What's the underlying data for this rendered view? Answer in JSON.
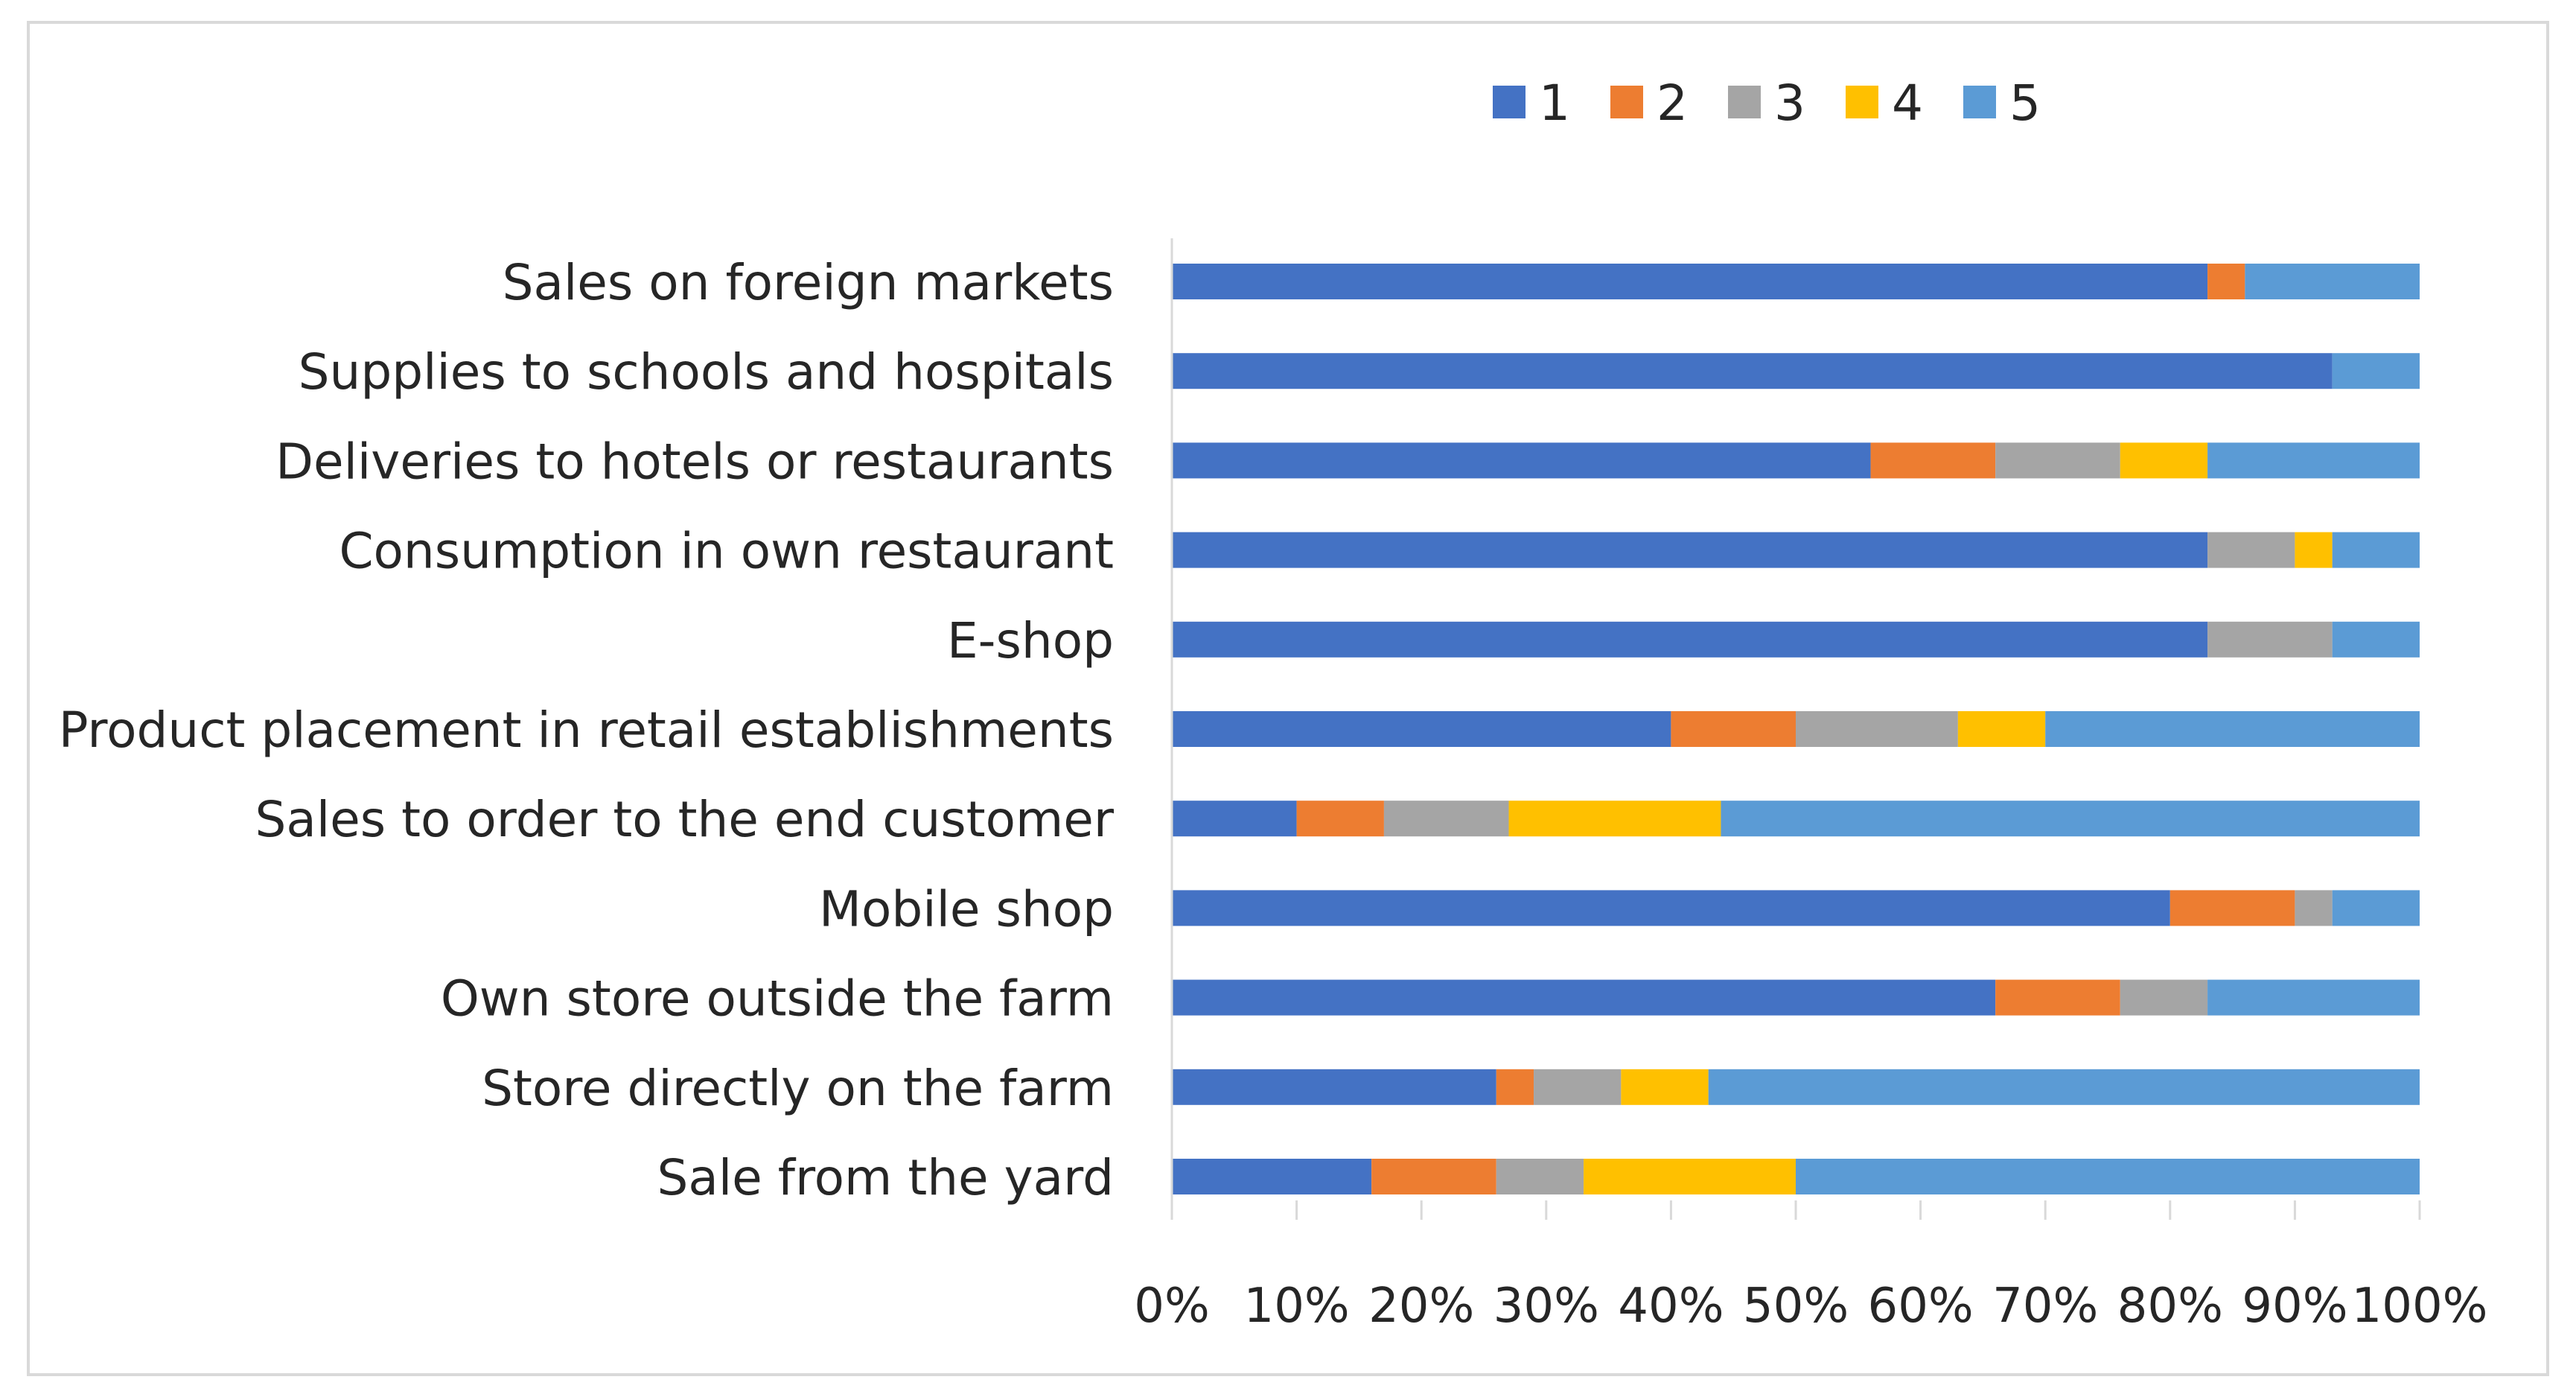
{
  "chart_data": {
    "type": "bar",
    "orientation": "horizontal",
    "stacked": "percent",
    "title": "",
    "xlabel": "",
    "ylabel": "",
    "xlim": [
      0,
      100
    ],
    "grid": false,
    "legend_position": "top",
    "x_ticks": [
      "0%",
      "10%",
      "20%",
      "30%",
      "40%",
      "50%",
      "60%",
      "70%",
      "80%",
      "90%",
      "100%"
    ],
    "categories": [
      "Sales on foreign markets",
      "Supplies to schools and hospitals",
      "Deliveries to hotels or restaurants",
      "Consumption in own restaurant",
      "E-shop",
      "Product placement in retail establishments",
      "Sales to order to the end customer",
      "Mobile shop",
      "Own store outside the farm",
      "Store directly on the farm",
      "Sale from the yard"
    ],
    "series": [
      {
        "name": "1",
        "color": "#4472c4",
        "values": [
          83,
          93,
          56,
          83,
          83,
          40,
          10,
          80,
          66,
          26,
          16
        ]
      },
      {
        "name": "2",
        "color": "#ed7d31",
        "values": [
          3,
          0,
          10,
          0,
          0,
          10,
          7,
          10,
          10,
          3,
          10
        ]
      },
      {
        "name": "3",
        "color": "#a5a5a5",
        "values": [
          0,
          0,
          10,
          7,
          10,
          13,
          10,
          3,
          7,
          7,
          7
        ]
      },
      {
        "name": "4",
        "color": "#ffc000",
        "values": [
          0,
          0,
          7,
          3,
          0,
          7,
          17,
          0,
          0,
          7,
          17
        ]
      },
      {
        "name": "5",
        "color": "#5b9bd5",
        "values": [
          14,
          7,
          17,
          7,
          7,
          30,
          56,
          7,
          17,
          57,
          50
        ]
      }
    ]
  }
}
